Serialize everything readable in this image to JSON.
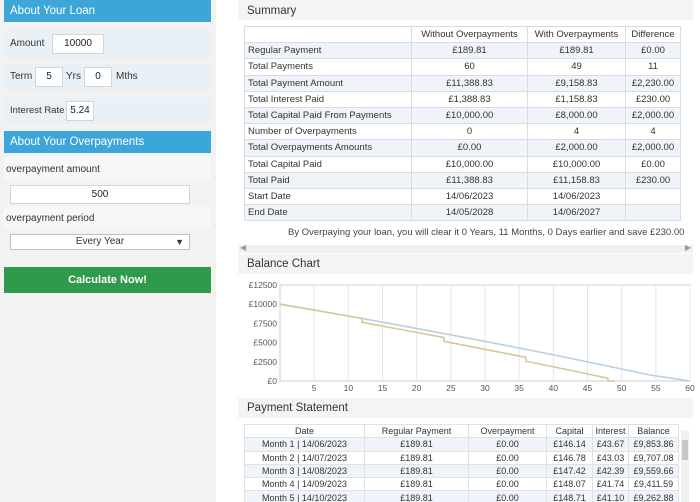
{
  "loan": {
    "header": "About Your Loan",
    "amount_label": "Amount",
    "amount_value": "10000",
    "term_label": "Term",
    "term_years": "5",
    "yrs_label": "Yrs",
    "term_months": "0",
    "mths_label": "Mths",
    "rate_label": "Interest Rate",
    "rate_value": "5.24"
  },
  "overpayments": {
    "header": "About Your Overpayments",
    "amount_label": "overpayment amount",
    "amount_value": "500",
    "period_label": "overpayment period",
    "period_value": "Every Year",
    "calculate_label": "Calculate Now!"
  },
  "summary": {
    "title": "Summary",
    "headers": [
      "",
      "Without Overpayments",
      "With Overpayments",
      "Difference"
    ],
    "rows": [
      [
        "Regular Payment",
        "£189.81",
        "£189.81",
        "£0.00"
      ],
      [
        "Total Payments",
        "60",
        "49",
        "11"
      ],
      [
        "Total Payment Amount",
        "£11,388.83",
        "£9,158.83",
        "£2,230.00"
      ],
      [
        "Total Interest Paid",
        "£1,388.83",
        "£1,158.83",
        "£230.00"
      ],
      [
        "Total Capital Paid From Payments",
        "£10,000.00",
        "£8,000.00",
        "£2,000.00"
      ],
      [
        "Number of Overpayments",
        "0",
        "4",
        "4"
      ],
      [
        "Total Overpayments Amounts",
        "£0.00",
        "£2,000.00",
        "£2,000.00"
      ],
      [
        "Total Capital Paid",
        "£10,000.00",
        "£10,000.00",
        "£0.00"
      ],
      [
        "Total Paid",
        "£11,388.83",
        "£11,158.83",
        "£230.00"
      ],
      [
        "Start Date",
        "14/06/2023",
        "14/06/2023",
        ""
      ],
      [
        "End Date",
        "14/05/2028",
        "14/06/2027",
        ""
      ]
    ],
    "note": "By Overpaying your loan, you will clear it 0 Years, 11 Months, 0 Days earlier and save £230.00"
  },
  "chart_title": "Balance Chart",
  "chart_data": {
    "type": "line",
    "xlim": [
      0,
      60
    ],
    "ylim": [
      0,
      12500
    ],
    "x_ticks": [
      5,
      10,
      15,
      20,
      25,
      30,
      35,
      40,
      45,
      50,
      55,
      60
    ],
    "y_ticks": [
      "£0",
      "£2500",
      "£5000",
      "£7500",
      "£10000",
      "£12500"
    ],
    "series": [
      {
        "color": "#b7cfe0",
        "x": [
          0,
          6,
          12,
          18,
          24,
          30,
          36,
          42,
          48,
          54,
          60
        ],
        "y": [
          10000,
          9080,
          8140,
          7170,
          6180,
          5160,
          4120,
          3040,
          1940,
          800,
          0
        ]
      },
      {
        "color": "#d4c89a",
        "x": [
          0,
          6,
          12,
          12,
          18,
          24,
          24,
          30,
          36,
          36,
          42,
          48,
          48,
          49
        ],
        "y": [
          10000,
          9080,
          8140,
          7640,
          6660,
          5660,
          5160,
          4130,
          3070,
          2570,
          1480,
          360,
          0,
          0
        ]
      }
    ]
  },
  "statement": {
    "title": "Payment Statement",
    "headers": [
      "Date",
      "Regular Payment",
      "Overpayment",
      "Capital",
      "Interest",
      "Balance"
    ],
    "rows": [
      [
        "Month 1 | 14/06/2023",
        "£189.81",
        "£0.00",
        "£146.14",
        "£43.67",
        "£9,853.86"
      ],
      [
        "Month 2 | 14/07/2023",
        "£189.81",
        "£0.00",
        "£146.78",
        "£43.03",
        "£9,707.08"
      ],
      [
        "Month 3 | 14/08/2023",
        "£189.81",
        "£0.00",
        "£147.42",
        "£42.39",
        "£9,559.66"
      ],
      [
        "Month 4 | 14/09/2023",
        "£189.81",
        "£0.00",
        "£148.07",
        "£41.74",
        "£9,411.59"
      ],
      [
        "Month 5 | 14/10/2023",
        "£189.81",
        "£0.00",
        "£148.71",
        "£41.10",
        "£9,262.88"
      ]
    ]
  }
}
